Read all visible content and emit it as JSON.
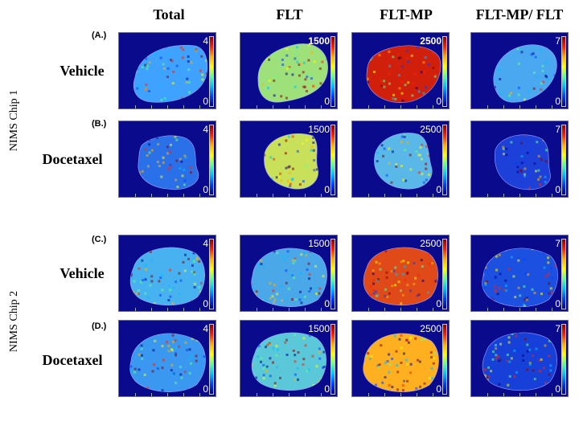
{
  "columns": [
    "Total",
    "FLT",
    "FLT-MP",
    "FLT-MP/ FLT"
  ],
  "chips": [
    "NIMS Chip 1",
    "NIMS Chip 2"
  ],
  "rows": [
    {
      "tag": "(A.)",
      "label": "Vehicle"
    },
    {
      "tag": "(B.)",
      "label": "Docetaxel"
    },
    {
      "tag": "(C.)",
      "label": "Vehicle"
    },
    {
      "tag": "(D.)",
      "label": "Docetaxel"
    }
  ],
  "colorbar": {
    "max_values": [
      "4",
      "1500",
      "2500",
      "7"
    ],
    "min_value": "0",
    "colors": [
      "#8b0000",
      "#ff2000",
      "#ffb000",
      "#ffff00",
      "#60ff90",
      "#00c0ff",
      "#0040ff",
      "#00008b"
    ]
  },
  "panel_colors": [
    [
      "#3fa2ff",
      "#9ee07a",
      "#d0200c",
      "#4aa8f0"
    ],
    [
      "#2a70e8",
      "#c9e05a",
      "#5ab8e8",
      "#1c40d8"
    ],
    [
      "#48b2f0",
      "#4aa8e8",
      "#e04a18",
      "#1c50e0"
    ],
    [
      "#3a98f0",
      "#5ac8d8",
      "#ffb020",
      "#1640d8"
    ]
  ]
}
